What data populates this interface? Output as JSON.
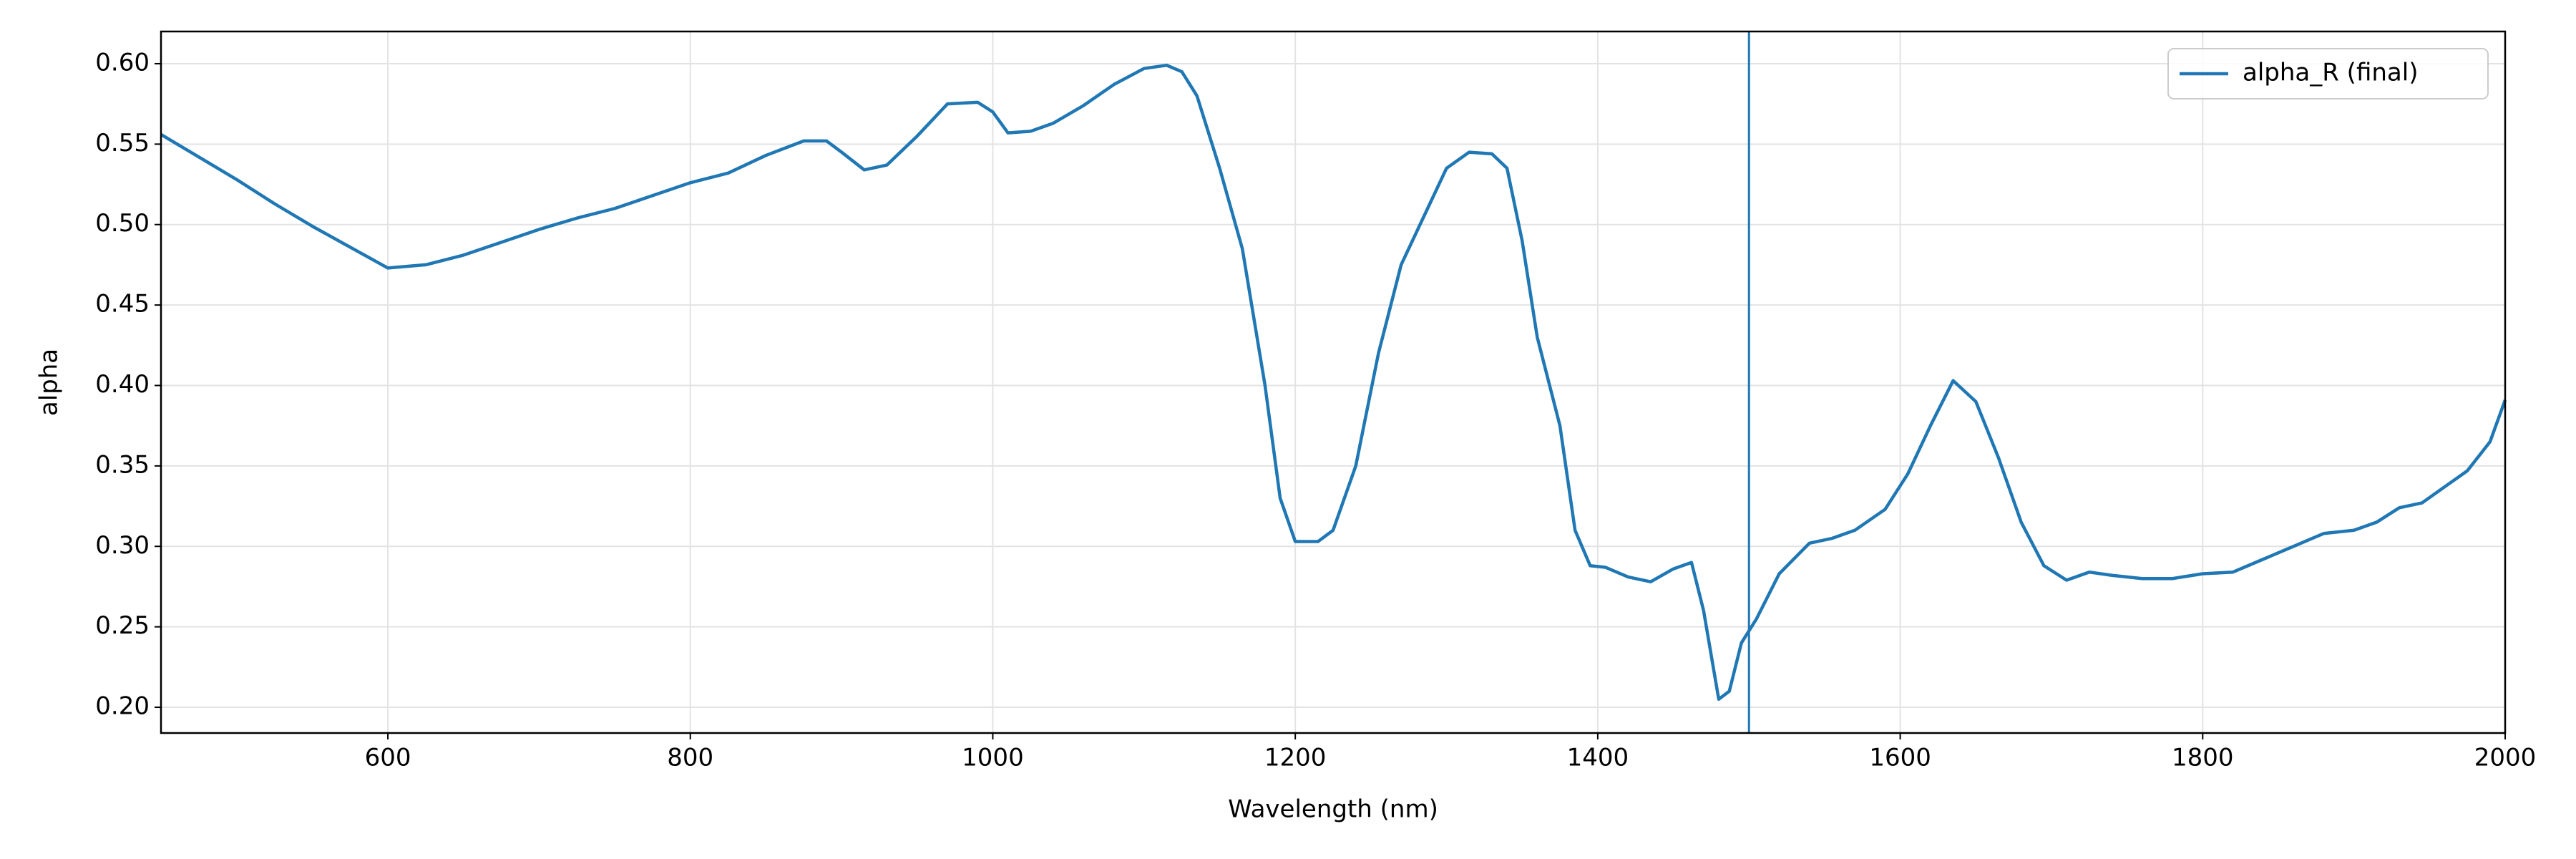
{
  "chart_data": {
    "type": "line",
    "xlabel": "Wavelength (nm)",
    "ylabel": "alpha",
    "x": [
      450,
      475,
      500,
      525,
      550,
      575,
      600,
      625,
      650,
      675,
      700,
      725,
      750,
      775,
      800,
      825,
      850,
      875,
      890,
      900,
      915,
      930,
      950,
      970,
      990,
      1000,
      1010,
      1025,
      1040,
      1060,
      1080,
      1100,
      1115,
      1125,
      1135,
      1150,
      1165,
      1180,
      1190,
      1200,
      1215,
      1225,
      1240,
      1255,
      1270,
      1285,
      1300,
      1315,
      1330,
      1340,
      1350,
      1360,
      1375,
      1385,
      1395,
      1405,
      1420,
      1435,
      1450,
      1462,
      1470,
      1480,
      1487,
      1495,
      1505,
      1520,
      1540,
      1555,
      1570,
      1590,
      1605,
      1620,
      1635,
      1650,
      1665,
      1680,
      1695,
      1710,
      1725,
      1740,
      1760,
      1780,
      1800,
      1820,
      1840,
      1860,
      1880,
      1900,
      1915,
      1930,
      1945,
      1960,
      1975,
      1990,
      2000
    ],
    "series": [
      {
        "name": "alpha_R (final)",
        "color": "#1f77b4",
        "values": [
          0.556,
          0.542,
          0.528,
          0.513,
          0.499,
          0.486,
          0.473,
          0.475,
          0.481,
          0.489,
          0.497,
          0.504,
          0.51,
          0.518,
          0.526,
          0.532,
          0.543,
          0.552,
          0.552,
          0.545,
          0.534,
          0.537,
          0.555,
          0.575,
          0.576,
          0.57,
          0.557,
          0.558,
          0.563,
          0.574,
          0.587,
          0.597,
          0.599,
          0.595,
          0.58,
          0.535,
          0.485,
          0.4,
          0.33,
          0.303,
          0.303,
          0.31,
          0.35,
          0.42,
          0.475,
          0.505,
          0.535,
          0.545,
          0.544,
          0.535,
          0.49,
          0.43,
          0.375,
          0.31,
          0.288,
          0.287,
          0.281,
          0.278,
          0.286,
          0.29,
          0.26,
          0.205,
          0.21,
          0.24,
          0.255,
          0.283,
          0.302,
          0.305,
          0.31,
          0.323,
          0.345,
          0.375,
          0.403,
          0.39,
          0.355,
          0.315,
          0.288,
          0.279,
          0.284,
          0.282,
          0.28,
          0.28,
          0.283,
          0.284,
          0.292,
          0.3,
          0.308,
          0.31,
          0.315,
          0.324,
          0.327,
          0.337,
          0.347,
          0.365,
          0.391
        ]
      }
    ],
    "vline": 1500,
    "xlim": [
      450,
      2000
    ],
    "ylim": [
      0.184,
      0.62
    ],
    "xticks": [
      600,
      800,
      1000,
      1200,
      1400,
      1600,
      1800,
      2000
    ],
    "yticks": [
      {
        "value": 0.2,
        "label": "0.20"
      },
      {
        "value": 0.25,
        "label": "0.25"
      },
      {
        "value": 0.3,
        "label": "0.30"
      },
      {
        "value": 0.35,
        "label": "0.35"
      },
      {
        "value": 0.4,
        "label": "0.40"
      },
      {
        "value": 0.45,
        "label": "0.45"
      },
      {
        "value": 0.5,
        "label": "0.50"
      },
      {
        "value": 0.55,
        "label": "0.55"
      },
      {
        "value": 0.6,
        "label": "0.60"
      }
    ],
    "grid": true,
    "legend": "upper right"
  }
}
